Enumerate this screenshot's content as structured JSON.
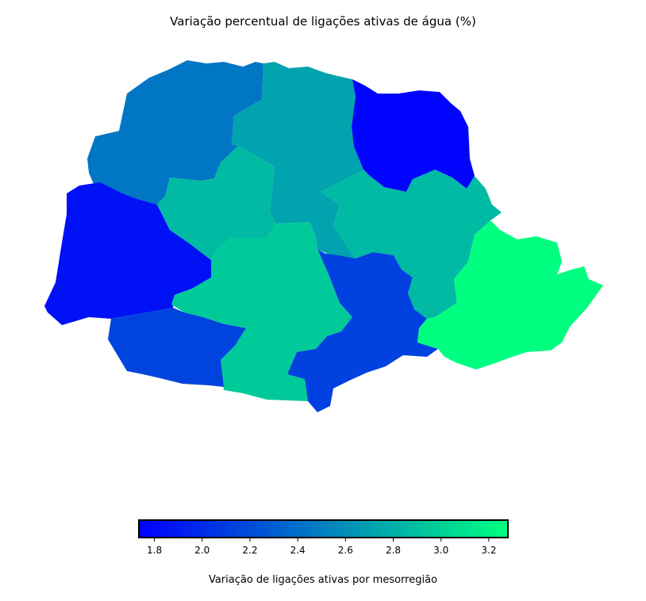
{
  "title": "Variação percentual de ligações ativas de água (%)",
  "colormap": {
    "name": "winter",
    "stops": [
      "#0000ff",
      "#00ff80"
    ],
    "min": 1.735,
    "max": 3.28
  },
  "regions": [
    {
      "id": "noroeste",
      "value": 2.45
    },
    {
      "id": "norte-central",
      "value": 2.72
    },
    {
      "id": "norte-pioneiro",
      "value": 1.76
    },
    {
      "id": "oeste",
      "value": 1.84
    },
    {
      "id": "centro-ocidental",
      "value": 2.86
    },
    {
      "id": "centro-oriental",
      "value": 2.86
    },
    {
      "id": "centro-sul",
      "value": 2.96
    },
    {
      "id": "sudoeste",
      "value": 2.15
    },
    {
      "id": "sudeste",
      "value": 2.13
    },
    {
      "id": "metropolitana",
      "value": 3.28
    }
  ],
  "colorbar": {
    "label": "Variação de ligações ativas por mesorregião",
    "ticks": [
      1.8,
      2.0,
      2.2,
      2.4,
      2.6,
      2.8,
      3.0,
      3.2
    ]
  }
}
